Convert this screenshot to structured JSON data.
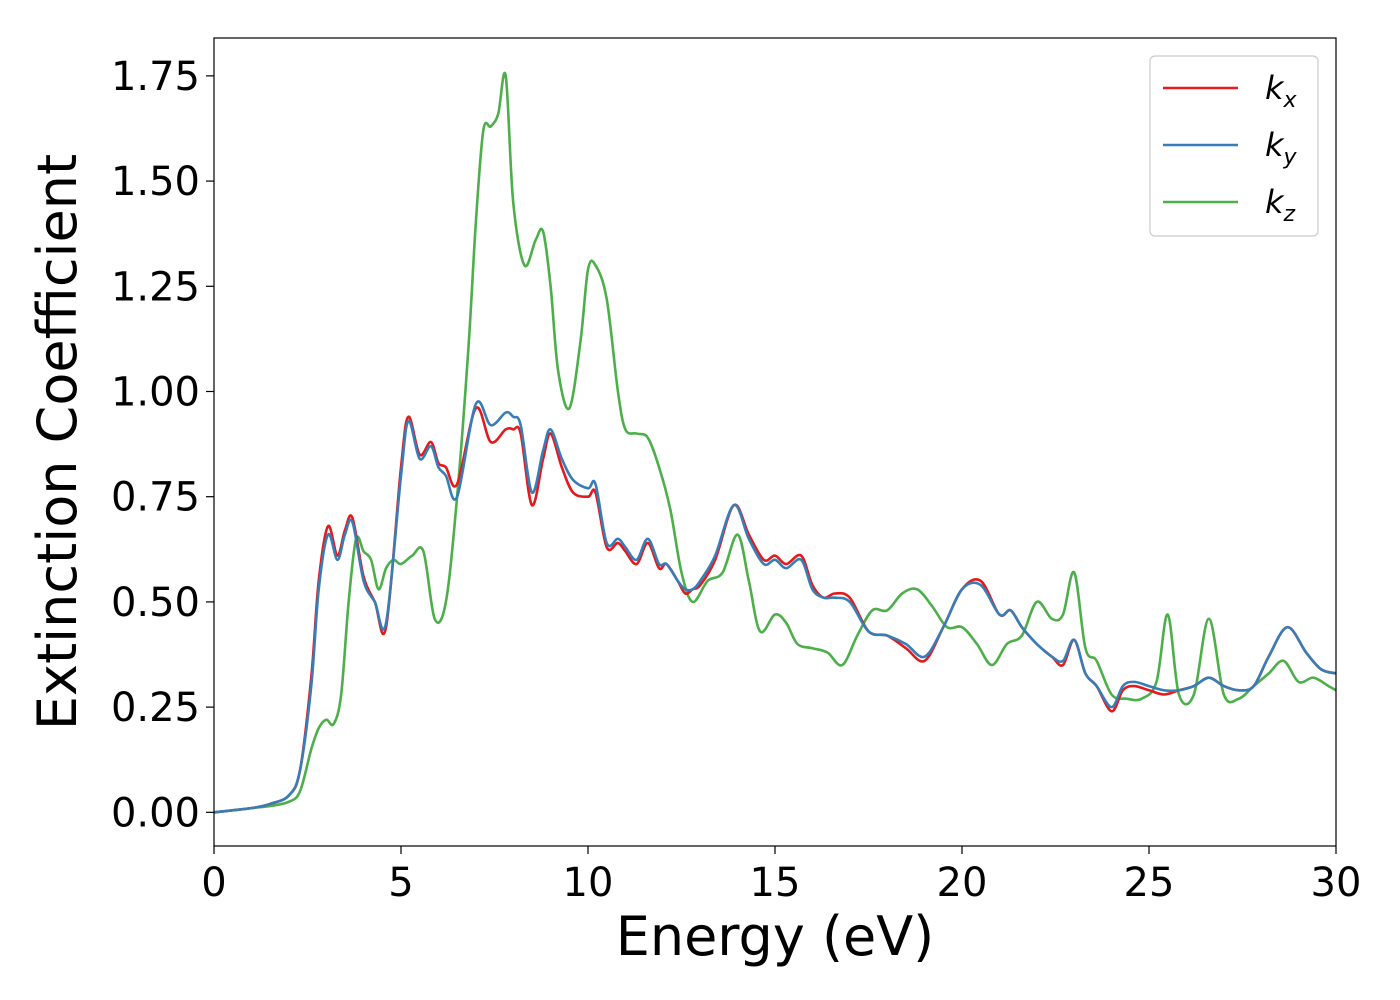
{
  "chart_data": {
    "type": "line",
    "title": "",
    "xlabel": "Energy (eV)",
    "ylabel": "Extinction Coefficient",
    "xlim": [
      0,
      30
    ],
    "ylim": [
      -0.08,
      1.84
    ],
    "xticks": [
      0,
      5,
      10,
      15,
      20,
      25,
      30
    ],
    "xtick_labels": [
      "0",
      "5",
      "10",
      "15",
      "20",
      "25",
      "30"
    ],
    "yticks": [
      0.0,
      0.25,
      0.5,
      0.75,
      1.0,
      1.25,
      1.5,
      1.75
    ],
    "ytick_labels": [
      "0.00",
      "0.25",
      "0.50",
      "0.75",
      "1.00",
      "1.25",
      "1.50",
      "1.75"
    ],
    "grid": false,
    "legend_position": "top-right",
    "series": [
      {
        "name": "k",
        "subscript": "x",
        "color": "#e41a1c",
        "x": [
          0,
          1,
          1.5,
          2,
          2.3,
          2.6,
          2.8,
          3.05,
          3.3,
          3.5,
          3.7,
          4.0,
          4.3,
          4.6,
          5.0,
          5.2,
          5.5,
          5.8,
          6.0,
          6.2,
          6.5,
          7.0,
          7.4,
          7.8,
          8.0,
          8.2,
          8.5,
          8.8,
          9.0,
          9.3,
          9.6,
          10.0,
          10.2,
          10.5,
          10.8,
          11.0,
          11.3,
          11.6,
          11.9,
          12.1,
          12.4,
          12.6,
          12.8,
          13.0,
          13.4,
          13.9,
          14.3,
          14.7,
          15.0,
          15.3,
          15.7,
          16.0,
          16.3,
          16.6,
          17.0,
          17.5,
          18.0,
          18.5,
          19.0,
          19.5,
          20.0,
          20.5,
          21.0,
          21.3,
          21.6,
          22.0,
          22.4,
          22.7,
          23.0,
          23.3,
          23.6,
          24.0,
          24.3,
          24.6,
          25.0,
          25.4,
          25.8,
          26.2,
          26.6,
          27.0,
          27.4,
          27.8,
          28.2,
          28.7,
          29.2,
          29.6,
          30
        ],
        "y": [
          0.0,
          0.01,
          0.02,
          0.04,
          0.1,
          0.32,
          0.55,
          0.68,
          0.61,
          0.67,
          0.7,
          0.56,
          0.5,
          0.44,
          0.82,
          0.94,
          0.85,
          0.88,
          0.83,
          0.82,
          0.78,
          0.96,
          0.88,
          0.91,
          0.91,
          0.9,
          0.73,
          0.84,
          0.9,
          0.82,
          0.76,
          0.75,
          0.76,
          0.63,
          0.64,
          0.62,
          0.59,
          0.64,
          0.58,
          0.59,
          0.55,
          0.52,
          0.53,
          0.54,
          0.6,
          0.73,
          0.66,
          0.6,
          0.61,
          0.59,
          0.61,
          0.54,
          0.51,
          0.52,
          0.51,
          0.43,
          0.42,
          0.39,
          0.36,
          0.44,
          0.53,
          0.55,
          0.47,
          0.48,
          0.44,
          0.4,
          0.37,
          0.35,
          0.41,
          0.33,
          0.3,
          0.24,
          0.29,
          0.3,
          0.29,
          0.28,
          0.29,
          0.3,
          0.32,
          0.3,
          0.29,
          0.3,
          0.37,
          0.44,
          0.38,
          0.34,
          0.33
        ]
      },
      {
        "name": "k",
        "subscript": "y",
        "color": "#377eb8",
        "x": [
          0,
          1,
          1.5,
          2,
          2.3,
          2.6,
          2.8,
          3.05,
          3.3,
          3.5,
          3.7,
          4.0,
          4.3,
          4.6,
          5.0,
          5.2,
          5.5,
          5.8,
          6.0,
          6.2,
          6.5,
          7.0,
          7.4,
          7.8,
          8.0,
          8.2,
          8.5,
          8.8,
          9.0,
          9.3,
          9.6,
          10.0,
          10.2,
          10.5,
          10.8,
          11.0,
          11.3,
          11.6,
          11.9,
          12.1,
          12.4,
          12.6,
          12.8,
          13.0,
          13.4,
          13.9,
          14.3,
          14.7,
          15.0,
          15.3,
          15.7,
          16.0,
          16.3,
          16.6,
          17.0,
          17.5,
          18.0,
          18.5,
          19.0,
          19.5,
          20.0,
          20.5,
          21.0,
          21.3,
          21.6,
          22.0,
          22.4,
          22.7,
          23.0,
          23.3,
          23.6,
          24.0,
          24.3,
          24.6,
          25.0,
          25.4,
          25.8,
          26.2,
          26.6,
          27.0,
          27.4,
          27.8,
          28.2,
          28.7,
          29.2,
          29.6,
          30
        ],
        "y": [
          0.0,
          0.01,
          0.02,
          0.04,
          0.1,
          0.3,
          0.53,
          0.66,
          0.6,
          0.66,
          0.69,
          0.55,
          0.5,
          0.45,
          0.8,
          0.93,
          0.84,
          0.87,
          0.82,
          0.8,
          0.75,
          0.97,
          0.92,
          0.95,
          0.94,
          0.92,
          0.76,
          0.86,
          0.91,
          0.84,
          0.79,
          0.77,
          0.78,
          0.64,
          0.65,
          0.63,
          0.6,
          0.65,
          0.59,
          0.59,
          0.55,
          0.53,
          0.53,
          0.55,
          0.61,
          0.73,
          0.65,
          0.59,
          0.6,
          0.58,
          0.6,
          0.53,
          0.51,
          0.51,
          0.5,
          0.43,
          0.42,
          0.4,
          0.37,
          0.44,
          0.53,
          0.54,
          0.47,
          0.48,
          0.44,
          0.4,
          0.37,
          0.36,
          0.41,
          0.33,
          0.3,
          0.25,
          0.3,
          0.31,
          0.3,
          0.29,
          0.29,
          0.3,
          0.32,
          0.3,
          0.29,
          0.3,
          0.37,
          0.44,
          0.38,
          0.34,
          0.33
        ]
      },
      {
        "name": "k",
        "subscript": "z",
        "color": "#4daf4a",
        "x": [
          0,
          1,
          1.5,
          2,
          2.3,
          2.6,
          2.8,
          3.0,
          3.2,
          3.4,
          3.6,
          3.8,
          4.0,
          4.2,
          4.4,
          4.6,
          4.8,
          5.0,
          5.3,
          5.6,
          5.9,
          6.2,
          6.5,
          6.8,
          7.0,
          7.2,
          7.4,
          7.6,
          7.8,
          8.0,
          8.3,
          8.6,
          8.8,
          9.0,
          9.2,
          9.5,
          9.8,
          10.0,
          10.2,
          10.5,
          10.8,
          11.0,
          11.3,
          11.6,
          11.9,
          12.2,
          12.5,
          12.8,
          13.2,
          13.6,
          14.0,
          14.3,
          14.6,
          15.0,
          15.3,
          15.6,
          16.0,
          16.4,
          16.8,
          17.2,
          17.6,
          18.0,
          18.4,
          18.8,
          19.2,
          19.6,
          20.0,
          20.4,
          20.8,
          21.2,
          21.6,
          22.0,
          22.4,
          22.7,
          23.0,
          23.3,
          23.6,
          24.0,
          24.4,
          24.8,
          25.2,
          25.5,
          25.8,
          26.2,
          26.6,
          27.0,
          27.4,
          27.8,
          28.2,
          28.6,
          29.0,
          29.4,
          29.8,
          30
        ],
        "y": [
          0.0,
          0.01,
          0.015,
          0.025,
          0.05,
          0.15,
          0.2,
          0.22,
          0.21,
          0.28,
          0.5,
          0.65,
          0.62,
          0.6,
          0.53,
          0.58,
          0.6,
          0.59,
          0.61,
          0.62,
          0.46,
          0.5,
          0.75,
          1.1,
          1.4,
          1.62,
          1.63,
          1.66,
          1.75,
          1.45,
          1.3,
          1.36,
          1.38,
          1.25,
          1.05,
          0.96,
          1.12,
          1.29,
          1.3,
          1.22,
          1.0,
          0.91,
          0.9,
          0.89,
          0.82,
          0.72,
          0.57,
          0.5,
          0.55,
          0.57,
          0.66,
          0.55,
          0.43,
          0.47,
          0.45,
          0.4,
          0.39,
          0.38,
          0.35,
          0.42,
          0.48,
          0.48,
          0.52,
          0.53,
          0.49,
          0.44,
          0.44,
          0.4,
          0.35,
          0.4,
          0.42,
          0.5,
          0.46,
          0.47,
          0.57,
          0.39,
          0.36,
          0.28,
          0.27,
          0.27,
          0.31,
          0.47,
          0.28,
          0.28,
          0.46,
          0.28,
          0.27,
          0.3,
          0.33,
          0.36,
          0.31,
          0.32,
          0.3,
          0.29
        ]
      }
    ]
  }
}
